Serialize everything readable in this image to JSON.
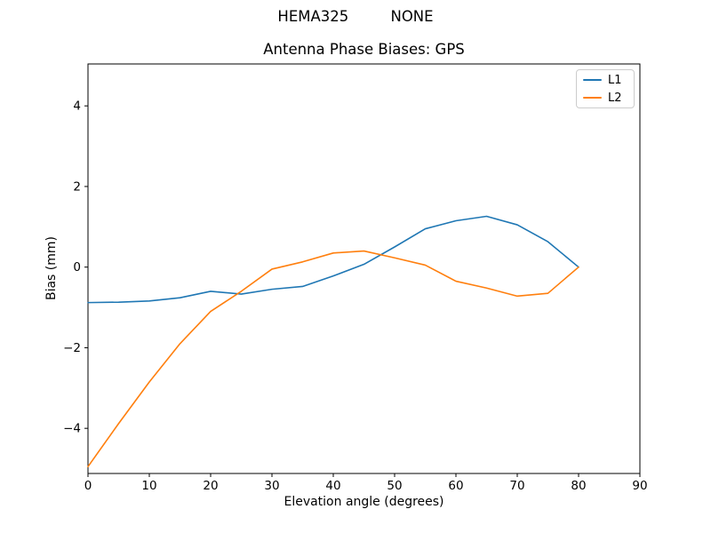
{
  "suptitle": "HEMA325         NONE",
  "chart_data": {
    "type": "line",
    "title": "Antenna Phase Biases: GPS",
    "xlabel": "Elevation angle (degrees)",
    "ylabel": "Bias (mm)",
    "xlim": [
      0,
      90
    ],
    "ylim": [
      -5.12,
      5.04
    ],
    "x_ticks": [
      0,
      10,
      20,
      30,
      40,
      50,
      60,
      70,
      80,
      90
    ],
    "y_ticks": [
      -4,
      -2,
      0,
      2,
      4
    ],
    "y_tick_labels": [
      "−4",
      "−2",
      "0",
      "2",
      "4"
    ],
    "grid": false,
    "legend_position": "upper right",
    "background": "#ffffff",
    "axis_color": "#000000",
    "x": [
      0,
      5,
      10,
      15,
      20,
      25,
      30,
      35,
      40,
      45,
      50,
      55,
      60,
      65,
      70,
      75,
      80
    ],
    "series": [
      {
        "name": "L1",
        "color": "#1f77b4",
        "values": [
          -0.88,
          -0.87,
          -0.84,
          -0.76,
          -0.6,
          -0.67,
          -0.55,
          -0.48,
          -0.22,
          0.07,
          0.5,
          0.95,
          1.15,
          1.26,
          1.05,
          0.63,
          0.0
        ]
      },
      {
        "name": "L2",
        "color": "#ff7f0e",
        "values": [
          -4.95,
          -3.88,
          -2.85,
          -1.9,
          -1.1,
          -0.6,
          -0.05,
          0.13,
          0.35,
          0.4,
          0.23,
          0.05,
          -0.35,
          -0.52,
          -0.72,
          -0.65,
          0.0
        ]
      }
    ]
  }
}
